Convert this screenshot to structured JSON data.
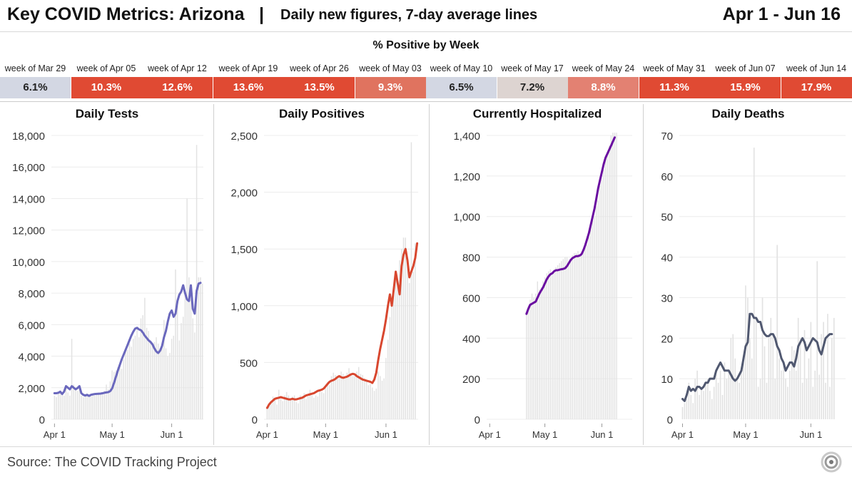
{
  "header": {
    "title": "Key COVID Metrics: Arizona",
    "separator": "|",
    "subtitle": "Daily new figures, 7-day average lines",
    "date_range": "Apr 1 - Jun 16"
  },
  "positivity": {
    "title": "% Positive by Week",
    "weeks": [
      {
        "label": "week of Mar 29",
        "value": "6.1%",
        "color": "#d3d7e3"
      },
      {
        "label": "week of Apr 05",
        "value": "10.3%",
        "color": "#e04a33"
      },
      {
        "label": "week of Apr 12",
        "value": "12.6%",
        "color": "#e04a33"
      },
      {
        "label": "week of Apr 19",
        "value": "13.6%",
        "color": "#e04a33"
      },
      {
        "label": "week of Apr 26",
        "value": "13.5%",
        "color": "#e04a33"
      },
      {
        "label": "week of May 03",
        "value": "9.3%",
        "color": "#e0735f"
      },
      {
        "label": "week of May 10",
        "value": "6.5%",
        "color": "#d3d7e3"
      },
      {
        "label": "week of May 17",
        "value": "7.2%",
        "color": "#ddd4d1"
      },
      {
        "label": "week of May 24",
        "value": "8.8%",
        "color": "#e38172"
      },
      {
        "label": "week of May 31",
        "value": "11.3%",
        "color": "#e04a33"
      },
      {
        "label": "week of Jun 07",
        "value": "15.9%",
        "color": "#e04a33"
      },
      {
        "label": "week of Jun 14",
        "value": "17.9%",
        "color": "#e04a33"
      }
    ]
  },
  "chart_data": [
    {
      "type": "bar",
      "title": "Daily Tests",
      "line_color": "#6a68bd",
      "ylim": [
        0,
        18000
      ],
      "yticks": [
        0,
        2000,
        4000,
        6000,
        8000,
        10000,
        12000,
        14000,
        16000,
        18000
      ],
      "ytick_labels": [
        "0",
        "2,000",
        "4,000",
        "6,000",
        "8,000",
        "10,000",
        "12,000",
        "14,000",
        "16,000",
        "18,000"
      ],
      "xticks": [
        {
          "label": "Apr 1",
          "day": 0
        },
        {
          "label": "May 1",
          "day": 30
        },
        {
          "label": "Jun 1",
          "day": 61
        }
      ],
      "start_day": 0,
      "bars": [
        1500,
        1400,
        1700,
        1800,
        1600,
        1500,
        2100,
        1700,
        1500,
        5100,
        2200,
        1900,
        1800,
        2000,
        1500,
        1400,
        1600,
        1500,
        1400,
        1600,
        1500,
        1500,
        1600,
        1700,
        1600,
        1700,
        1800,
        2200,
        1900,
        2400,
        3100,
        3000,
        3100,
        3300,
        3500,
        3200,
        3800,
        4500,
        4400,
        4800,
        4600,
        5100,
        5300,
        5800,
        5200,
        6400,
        6600,
        7700,
        5800,
        5600,
        5000,
        4800,
        4900,
        5200,
        4800,
        4500,
        4600,
        6300,
        4500,
        4000,
        4200,
        5100,
        5300,
        9500,
        7200,
        5000,
        6100,
        6500,
        8000,
        14000,
        9000,
        7600,
        6400,
        5500,
        17400,
        9000,
        9000,
        8600
      ],
      "avg": [
        1650,
        1650,
        1680,
        1750,
        1600,
        1750,
        2100,
        2000,
        1900,
        2100,
        2000,
        1900,
        1980,
        2100,
        1650,
        1550,
        1500,
        1550,
        1480,
        1550,
        1580,
        1600,
        1610,
        1620,
        1630,
        1650,
        1680,
        1700,
        1720,
        1780,
        1950,
        2300,
        2700,
        3100,
        3450,
        3800,
        4100,
        4400,
        4700,
        5000,
        5300,
        5550,
        5750,
        5800,
        5700,
        5650,
        5500,
        5300,
        5150,
        5000,
        4900,
        4750,
        4500,
        4300,
        4200,
        4350,
        4650,
        5200,
        5600,
        6200,
        6700,
        6900,
        6500,
        6700,
        7500,
        7900,
        8100,
        8500,
        8000,
        7600,
        7500,
        8500,
        7000,
        6700,
        8150,
        8600,
        8650
      ]
    },
    {
      "type": "bar",
      "title": "Daily Positives",
      "line_color": "#d8472f",
      "ylim": [
        0,
        2500
      ],
      "yticks": [
        0,
        500,
        1000,
        1500,
        2000,
        2500
      ],
      "ytick_labels": [
        "0",
        "500",
        "1,000",
        "1,500",
        "2,000",
        "2,500"
      ],
      "xticks": [
        {
          "label": "Apr 1",
          "day": 0
        },
        {
          "label": "May 1",
          "day": 30
        },
        {
          "label": "Jun 1",
          "day": 61
        }
      ],
      "start_day": 0,
      "bars": [
        110,
        140,
        160,
        200,
        190,
        130,
        260,
        180,
        160,
        210,
        240,
        210,
        180,
        200,
        210,
        150,
        140,
        210,
        200,
        230,
        180,
        200,
        260,
        210,
        190,
        210,
        200,
        260,
        240,
        230,
        280,
        330,
        300,
        380,
        410,
        390,
        370,
        380,
        420,
        400,
        380,
        410,
        450,
        400,
        380,
        380,
        420,
        460,
        400,
        390,
        360,
        340,
        300,
        310,
        280,
        250,
        270,
        420,
        380,
        340,
        360,
        540,
        700,
        900,
        1000,
        1100,
        1300,
        1200,
        1400,
        1500,
        1600,
        1600,
        1400,
        1200,
        2440,
        1300,
        1550
      ],
      "avg": [
        100,
        130,
        150,
        165,
        180,
        185,
        190,
        195,
        190,
        185,
        180,
        175,
        175,
        180,
        175,
        175,
        180,
        185,
        190,
        200,
        210,
        215,
        220,
        225,
        230,
        240,
        250,
        255,
        260,
        270,
        290,
        310,
        330,
        340,
        345,
        355,
        370,
        380,
        370,
        365,
        370,
        375,
        385,
        395,
        400,
        395,
        380,
        370,
        360,
        350,
        345,
        340,
        335,
        330,
        320,
        350,
        410,
        520,
        620,
        700,
        780,
        880,
        1000,
        1100,
        1000,
        1150,
        1300,
        1200,
        1100,
        1350,
        1450,
        1500,
        1400,
        1250,
        1300,
        1350,
        1420,
        1550
      ]
    },
    {
      "type": "bar",
      "title": "Currently Hospitalized",
      "line_color": "#6a0da0",
      "ylim": [
        0,
        1400
      ],
      "yticks": [
        0,
        200,
        400,
        600,
        800,
        1000,
        1200,
        1400
      ],
      "ytick_labels": [
        "0",
        "200",
        "400",
        "600",
        "800",
        "1,000",
        "1,200",
        "1,400"
      ],
      "xticks": [
        {
          "label": "Apr 1",
          "day": 0
        },
        {
          "label": "May 1",
          "day": 30
        },
        {
          "label": "Jun 1",
          "day": 61
        }
      ],
      "start_day": 20,
      "bars": [
        520,
        560,
        590,
        620,
        600,
        620,
        680,
        640,
        650,
        680,
        700,
        720,
        730,
        740,
        720,
        740,
        750,
        760,
        770,
        780,
        790,
        800,
        800,
        780,
        790,
        810,
        820,
        820,
        830,
        800,
        810,
        830,
        850,
        860,
        900,
        950,
        980,
        1000,
        1050,
        1080,
        1150,
        1180,
        1230,
        1280,
        1300,
        1350,
        1400,
        1440,
        1480,
        1500
      ],
      "avg": [
        520,
        545,
        565,
        570,
        575,
        580,
        600,
        620,
        635,
        650,
        670,
        690,
        705,
        715,
        720,
        730,
        735,
        735,
        738,
        740,
        742,
        745,
        755,
        770,
        785,
        795,
        800,
        805,
        805,
        808,
        815,
        835,
        860,
        890,
        920,
        960,
        1000,
        1040,
        1090,
        1140,
        1180,
        1220,
        1260,
        1290,
        1310,
        1330,
        1350,
        1370,
        1390
      ]
    },
    {
      "type": "bar",
      "title": "Daily Deaths",
      "line_color": "#505870",
      "ylim": [
        0,
        70
      ],
      "yticks": [
        10,
        20,
        30,
        40,
        50,
        60,
        70
      ],
      "ytick_labels": [
        "10",
        "20",
        "30",
        "40",
        "50",
        "60",
        "70"
      ],
      "xticks": [
        {
          "label": "Apr 1",
          "day": 0
        },
        {
          "label": "May 1",
          "day": 30
        },
        {
          "label": "Jun 1",
          "day": 61
        }
      ],
      "start_day": 0,
      "bars": [
        3,
        4,
        5,
        9,
        6,
        4,
        10,
        12,
        6,
        8,
        7,
        9,
        10,
        7,
        5,
        8,
        11,
        9,
        12,
        6,
        14,
        10,
        12,
        20,
        21,
        15,
        10,
        9,
        12,
        14,
        33,
        30,
        20,
        15,
        67,
        25,
        8,
        10,
        30,
        18,
        9,
        20,
        25,
        21,
        10,
        43,
        15,
        12,
        14,
        10,
        8,
        12,
        18,
        17,
        12,
        25,
        20,
        9,
        22,
        10,
        15,
        24,
        8,
        12,
        39,
        11,
        21,
        24,
        9,
        26,
        8,
        20,
        25
      ],
      "avg": [
        5,
        4.5,
        6,
        8,
        7,
        7.5,
        7,
        8,
        8,
        7.5,
        8,
        9,
        9,
        10,
        10,
        10,
        12,
        13,
        14,
        13,
        12,
        12,
        12,
        11,
        10,
        9.5,
        10,
        11,
        12,
        15,
        18,
        19,
        26,
        26,
        25,
        25,
        24,
        24,
        22,
        21,
        20.5,
        20.5,
        21,
        21,
        20,
        18,
        17,
        15,
        14,
        12,
        13,
        14,
        14,
        13,
        15,
        18,
        19,
        20,
        19,
        17,
        18,
        19,
        20,
        19.5,
        19,
        17,
        16,
        18,
        20,
        20.5,
        21,
        21
      ]
    }
  ],
  "source": "Source: The COVID Tracking Project"
}
